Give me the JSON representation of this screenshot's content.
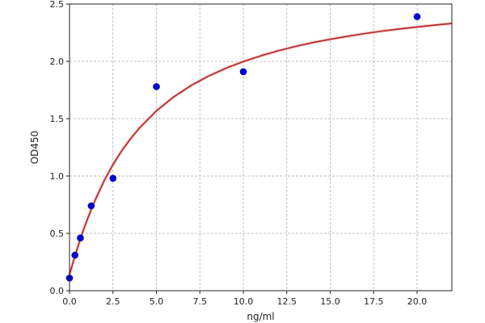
{
  "chart_data": {
    "type": "scatter",
    "xlabel": "ng/ml",
    "ylabel": "OD450",
    "xlim": [
      0,
      22
    ],
    "ylim": [
      0,
      2.5
    ],
    "grid": true,
    "x_ticks": [
      0,
      2.5,
      5,
      7.5,
      10,
      12.5,
      15,
      17.5,
      20
    ],
    "x_tick_labels": [
      "0.0",
      "2.5",
      "5.0",
      "7.5",
      "10.0",
      "12.5",
      "15.0",
      "17.5",
      "20.0"
    ],
    "y_ticks": [
      0,
      0.5,
      1,
      1.5,
      2,
      2.5
    ],
    "y_tick_labels": [
      "0.0",
      "0.5",
      "1.0",
      "1.5",
      "2.0",
      "2.5"
    ],
    "series": [
      {
        "type": "scatter",
        "color": "#0000cc",
        "x": [
          0,
          0.3125,
          0.625,
          1.25,
          2.5,
          5,
          10,
          20
        ],
        "y": [
          0.11,
          0.31,
          0.46,
          0.74,
          0.98,
          1.78,
          1.91,
          2.39
        ]
      },
      {
        "type": "line",
        "color": "#b22222",
        "x": [
          0,
          0.25,
          0.5,
          0.75,
          1,
          1.25,
          1.5,
          2,
          2.5,
          3,
          3.5,
          4,
          5,
          6,
          7,
          8,
          9,
          10,
          11,
          12,
          13,
          14,
          15,
          16,
          17,
          18,
          19,
          20,
          21,
          22
        ],
        "y": [
          0.14,
          0.272,
          0.394,
          0.507,
          0.612,
          0.709,
          0.799,
          0.961,
          1.1,
          1.22,
          1.324,
          1.415,
          1.569,
          1.691,
          1.79,
          1.872,
          1.94,
          1.998,
          2.048,
          2.092,
          2.13,
          2.164,
          2.193,
          2.219,
          2.243,
          2.264,
          2.283,
          2.3,
          2.316,
          2.33
        ]
      }
    ]
  }
}
